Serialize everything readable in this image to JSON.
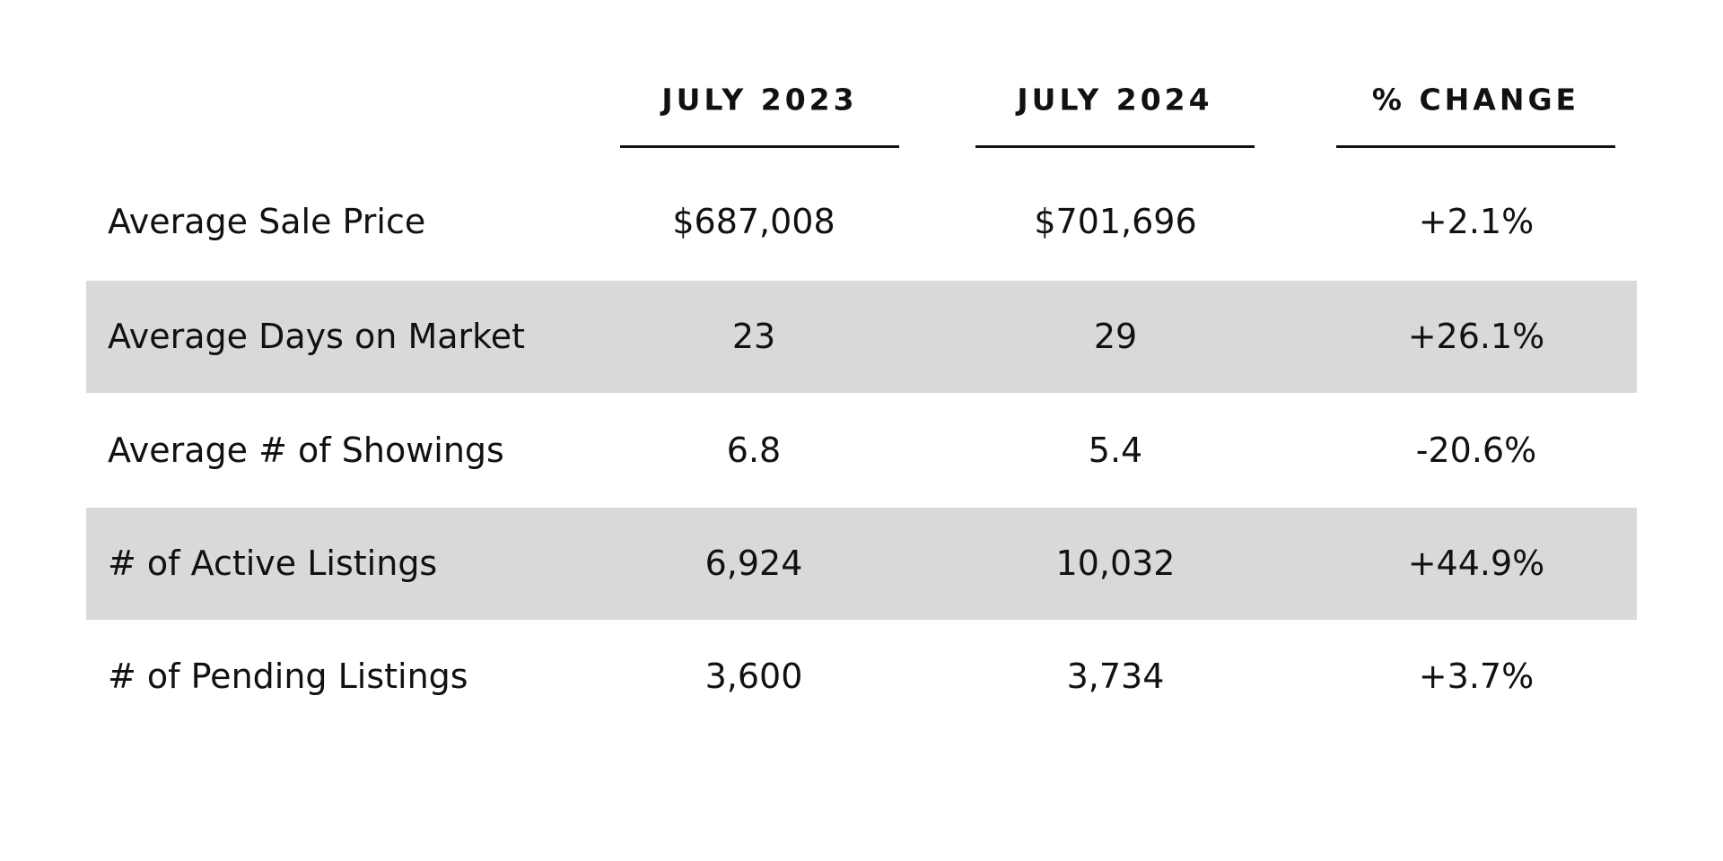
{
  "table": {
    "columns": [
      "JULY 2023",
      "JULY 2024",
      "% CHANGE"
    ],
    "rows": [
      [
        "Average Sale Price",
        "$687,008",
        "$701,696",
        "+2.1%"
      ],
      [
        "Average Days on Market",
        "23",
        "29",
        "+26.1%"
      ],
      [
        "Average # of Showings",
        "6.8",
        "5.4",
        "-20.6%"
      ],
      [
        "# of Active Listings",
        "6,924",
        "10,032",
        "+44.9%"
      ],
      [
        "# of Pending Listings",
        "3,600",
        "3,734",
        "+3.7%"
      ]
    ]
  }
}
